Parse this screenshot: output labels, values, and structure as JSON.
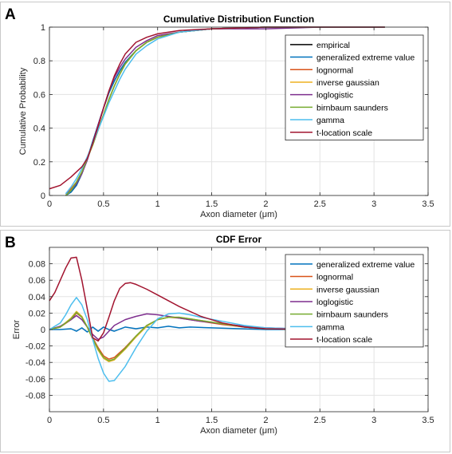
{
  "panels": {
    "a": {
      "letter": "A"
    },
    "b": {
      "letter": "B"
    }
  },
  "chart_data": [
    {
      "type": "line",
      "title": "Cumulative Distribution Function",
      "xlabel": "Axon diameter (μm)",
      "ylabel": "Cumulative Probability",
      "xlim": [
        0,
        3.5
      ],
      "ylim": [
        0,
        1
      ],
      "xticks": [
        0,
        0.5,
        1,
        1.5,
        2,
        2.5,
        3,
        3.5
      ],
      "xtick_labels": [
        "0",
        "0.5",
        "1",
        "1.5",
        "2",
        "2.5",
        "3",
        "3.5"
      ],
      "yticks": [
        0,
        0.2,
        0.4,
        0.6,
        0.8,
        1
      ],
      "ytick_labels": [
        "0",
        "0.2",
        "0.4",
        "0.6",
        "0.8",
        "1"
      ],
      "grid": true,
      "legend_position": "top-right",
      "series": [
        {
          "name": "empirical",
          "color": "#000000",
          "x": [
            0.15,
            0.2,
            0.25,
            0.3,
            0.35,
            0.4,
            0.45,
            0.5,
            0.55,
            0.6,
            0.65,
            0.7,
            0.8,
            0.9,
            1.0,
            1.2,
            1.5,
            2.0,
            2.5,
            3.1
          ],
          "y": [
            0.0,
            0.02,
            0.06,
            0.13,
            0.22,
            0.32,
            0.42,
            0.52,
            0.61,
            0.68,
            0.74,
            0.79,
            0.86,
            0.91,
            0.94,
            0.97,
            0.99,
            1.0,
            1.0,
            1.0
          ]
        },
        {
          "name": "generalized extreme value",
          "color": "#0072BD",
          "x": [
            0.15,
            0.2,
            0.25,
            0.3,
            0.35,
            0.4,
            0.45,
            0.5,
            0.55,
            0.6,
            0.65,
            0.7,
            0.8,
            0.9,
            1.0,
            1.2,
            1.5,
            2.0,
            2.5,
            3.1
          ],
          "y": [
            0.0,
            0.02,
            0.06,
            0.13,
            0.22,
            0.32,
            0.42,
            0.52,
            0.61,
            0.68,
            0.74,
            0.79,
            0.86,
            0.91,
            0.94,
            0.97,
            0.99,
            1.0,
            1.0,
            1.0
          ]
        },
        {
          "name": "lognormal",
          "color": "#D95319",
          "x": [
            0.15,
            0.2,
            0.25,
            0.3,
            0.35,
            0.4,
            0.45,
            0.5,
            0.55,
            0.6,
            0.65,
            0.7,
            0.8,
            0.9,
            1.0,
            1.2,
            1.5,
            2.0,
            2.5,
            3.1
          ],
          "y": [
            0.01,
            0.04,
            0.08,
            0.14,
            0.22,
            0.3,
            0.39,
            0.48,
            0.57,
            0.65,
            0.72,
            0.78,
            0.86,
            0.91,
            0.94,
            0.97,
            0.99,
            1.0,
            1.0,
            1.0
          ]
        },
        {
          "name": "inverse gaussian",
          "color": "#EDB120",
          "x": [
            0.15,
            0.2,
            0.25,
            0.3,
            0.35,
            0.4,
            0.45,
            0.5,
            0.55,
            0.6,
            0.65,
            0.7,
            0.8,
            0.9,
            1.0,
            1.2,
            1.5,
            2.0,
            2.5,
            3.1
          ],
          "y": [
            0.0,
            0.03,
            0.08,
            0.14,
            0.22,
            0.3,
            0.39,
            0.48,
            0.57,
            0.65,
            0.72,
            0.78,
            0.86,
            0.91,
            0.94,
            0.97,
            0.99,
            1.0,
            1.0,
            1.0
          ]
        },
        {
          "name": "loglogistic",
          "color": "#7E2F8E",
          "x": [
            0.15,
            0.2,
            0.25,
            0.3,
            0.35,
            0.4,
            0.45,
            0.5,
            0.55,
            0.6,
            0.65,
            0.7,
            0.8,
            0.9,
            1.0,
            1.2,
            1.5,
            2.0,
            2.5,
            3.1
          ],
          "y": [
            0.01,
            0.03,
            0.07,
            0.13,
            0.21,
            0.31,
            0.42,
            0.52,
            0.62,
            0.7,
            0.76,
            0.81,
            0.88,
            0.92,
            0.95,
            0.97,
            0.99,
            0.99,
            1.0,
            1.0
          ]
        },
        {
          "name": "birnbaum saunders",
          "color": "#77AC30",
          "x": [
            0.15,
            0.2,
            0.25,
            0.3,
            0.35,
            0.4,
            0.45,
            0.5,
            0.55,
            0.6,
            0.65,
            0.7,
            0.8,
            0.9,
            1.0,
            1.2,
            1.5,
            2.0,
            2.5,
            3.1
          ],
          "y": [
            0.0,
            0.03,
            0.08,
            0.14,
            0.22,
            0.3,
            0.39,
            0.48,
            0.57,
            0.65,
            0.72,
            0.78,
            0.86,
            0.91,
            0.94,
            0.97,
            0.99,
            1.0,
            1.0,
            1.0
          ]
        },
        {
          "name": "gamma",
          "color": "#4DBEEE",
          "x": [
            0.15,
            0.2,
            0.25,
            0.3,
            0.35,
            0.4,
            0.45,
            0.5,
            0.55,
            0.6,
            0.65,
            0.7,
            0.8,
            0.9,
            1.0,
            1.2,
            1.5,
            2.0,
            2.5,
            3.1
          ],
          "y": [
            0.01,
            0.05,
            0.1,
            0.16,
            0.23,
            0.31,
            0.39,
            0.47,
            0.55,
            0.62,
            0.69,
            0.75,
            0.84,
            0.89,
            0.93,
            0.97,
            0.99,
            1.0,
            1.0,
            1.0
          ]
        },
        {
          "name": "t-location scale",
          "color": "#A2142F",
          "x": [
            0.0,
            0.1,
            0.2,
            0.3,
            0.35,
            0.4,
            0.45,
            0.5,
            0.55,
            0.6,
            0.65,
            0.7,
            0.8,
            0.9,
            1.0,
            1.2,
            1.5,
            2.0,
            2.5,
            3.1
          ],
          "y": [
            0.04,
            0.06,
            0.11,
            0.17,
            0.22,
            0.31,
            0.41,
            0.52,
            0.62,
            0.71,
            0.78,
            0.84,
            0.91,
            0.94,
            0.96,
            0.98,
            0.99,
            1.0,
            1.0,
            1.0
          ]
        }
      ]
    },
    {
      "type": "line",
      "title": "CDF Error",
      "xlabel": "Axon diameter (μm)",
      "ylabel": "Error",
      "xlim": [
        0,
        3.5
      ],
      "ylim": [
        -0.1,
        0.1
      ],
      "xticks": [
        0,
        0.5,
        1,
        1.5,
        2,
        2.5,
        3,
        3.5
      ],
      "xtick_labels": [
        "0",
        "0.5",
        "1",
        "1.5",
        "2",
        "2.5",
        "3",
        "3.5"
      ],
      "yticks": [
        -0.08,
        -0.06,
        -0.04,
        -0.02,
        0,
        0.02,
        0.04,
        0.06,
        0.08
      ],
      "ytick_labels": [
        "-0.08",
        "-0.06",
        "-0.04",
        "-0.02",
        "0",
        "0.02",
        "0.04",
        "0.06",
        "0.08"
      ],
      "grid": true,
      "legend_position": "top-right",
      "series": [
        {
          "name": "generalized extreme value",
          "color": "#0072BD",
          "x": [
            0.0,
            0.1,
            0.2,
            0.25,
            0.3,
            0.35,
            0.4,
            0.45,
            0.5,
            0.55,
            0.6,
            0.7,
            0.8,
            0.9,
            1.0,
            1.1,
            1.2,
            1.3,
            1.5,
            2.0,
            3.1
          ],
          "y": [
            0.0,
            0.0,
            0.001,
            -0.002,
            0.002,
            -0.003,
            0.003,
            -0.002,
            0.003,
            0.0,
            -0.002,
            0.003,
            0.001,
            0.003,
            0.002,
            0.004,
            0.002,
            0.003,
            0.002,
            0.0,
            0.0
          ]
        },
        {
          "name": "lognormal",
          "color": "#D95319",
          "x": [
            0.0,
            0.1,
            0.2,
            0.25,
            0.3,
            0.35,
            0.4,
            0.45,
            0.5,
            0.55,
            0.6,
            0.7,
            0.8,
            0.9,
            1.0,
            1.1,
            1.2,
            1.3,
            1.4,
            1.6,
            1.8,
            2.0,
            2.5,
            3.1
          ],
          "y": [
            0.0,
            0.003,
            0.012,
            0.02,
            0.015,
            0.003,
            -0.01,
            -0.022,
            -0.032,
            -0.036,
            -0.034,
            -0.022,
            -0.008,
            0.005,
            0.012,
            0.015,
            0.014,
            0.012,
            0.01,
            0.006,
            0.003,
            0.001,
            0.0,
            0.0
          ]
        },
        {
          "name": "inverse gaussian",
          "color": "#EDB120",
          "x": [
            0.0,
            0.1,
            0.2,
            0.25,
            0.3,
            0.35,
            0.4,
            0.45,
            0.5,
            0.55,
            0.6,
            0.7,
            0.8,
            0.9,
            1.0,
            1.1,
            1.2,
            1.3,
            1.4,
            1.6,
            1.8,
            2.0,
            2.5,
            3.1
          ],
          "y": [
            0.0,
            0.003,
            0.014,
            0.022,
            0.016,
            0.003,
            -0.012,
            -0.025,
            -0.035,
            -0.039,
            -0.037,
            -0.024,
            -0.009,
            0.004,
            0.012,
            0.015,
            0.015,
            0.013,
            0.011,
            0.007,
            0.003,
            0.001,
            0.0,
            0.0
          ]
        },
        {
          "name": "loglogistic",
          "color": "#7E2F8E",
          "x": [
            0.0,
            0.1,
            0.2,
            0.25,
            0.3,
            0.35,
            0.4,
            0.45,
            0.5,
            0.55,
            0.6,
            0.7,
            0.8,
            0.9,
            1.0,
            1.1,
            1.2,
            1.4,
            1.6,
            1.8,
            2.0,
            2.5,
            3.1
          ],
          "y": [
            0.0,
            0.004,
            0.012,
            0.017,
            0.012,
            0.003,
            -0.006,
            -0.012,
            -0.009,
            -0.002,
            0.005,
            0.012,
            0.016,
            0.019,
            0.018,
            0.016,
            0.014,
            0.01,
            0.007,
            0.004,
            0.002,
            0.0,
            0.0
          ]
        },
        {
          "name": "birnbaum saunders",
          "color": "#77AC30",
          "x": [
            0.0,
            0.1,
            0.2,
            0.25,
            0.3,
            0.35,
            0.4,
            0.45,
            0.5,
            0.55,
            0.6,
            0.7,
            0.8,
            0.9,
            1.0,
            1.1,
            1.2,
            1.3,
            1.4,
            1.6,
            1.8,
            2.0,
            2.5,
            3.1
          ],
          "y": [
            0.0,
            0.003,
            0.013,
            0.021,
            0.015,
            0.003,
            -0.011,
            -0.024,
            -0.034,
            -0.038,
            -0.036,
            -0.023,
            -0.008,
            0.005,
            0.012,
            0.015,
            0.015,
            0.013,
            0.011,
            0.007,
            0.003,
            0.001,
            0.0,
            0.0
          ]
        },
        {
          "name": "gamma",
          "color": "#4DBEEE",
          "x": [
            0.0,
            0.1,
            0.15,
            0.2,
            0.25,
            0.3,
            0.35,
            0.4,
            0.45,
            0.5,
            0.55,
            0.6,
            0.7,
            0.8,
            0.9,
            1.0,
            1.1,
            1.2,
            1.3,
            1.4,
            1.6,
            1.8,
            2.0,
            2.5,
            3.1
          ],
          "y": [
            0.0,
            0.008,
            0.018,
            0.03,
            0.039,
            0.03,
            0.012,
            -0.012,
            -0.035,
            -0.053,
            -0.063,
            -0.062,
            -0.045,
            -0.022,
            -0.002,
            0.013,
            0.019,
            0.02,
            0.018,
            0.015,
            0.01,
            0.005,
            0.002,
            0.0,
            0.0
          ]
        },
        {
          "name": "t-location scale",
          "color": "#A2142F",
          "x": [
            0.0,
            0.05,
            0.1,
            0.15,
            0.2,
            0.25,
            0.3,
            0.35,
            0.4,
            0.45,
            0.5,
            0.55,
            0.6,
            0.65,
            0.7,
            0.75,
            0.8,
            0.9,
            1.0,
            1.1,
            1.2,
            1.4,
            1.6,
            1.8,
            2.0,
            2.5,
            3.1
          ],
          "y": [
            0.035,
            0.045,
            0.06,
            0.075,
            0.087,
            0.088,
            0.06,
            0.025,
            -0.01,
            -0.014,
            -0.004,
            0.015,
            0.035,
            0.05,
            0.056,
            0.057,
            0.055,
            0.049,
            0.042,
            0.035,
            0.028,
            0.016,
            0.008,
            0.003,
            0.001,
            0.0,
            0.0
          ]
        }
      ]
    }
  ]
}
